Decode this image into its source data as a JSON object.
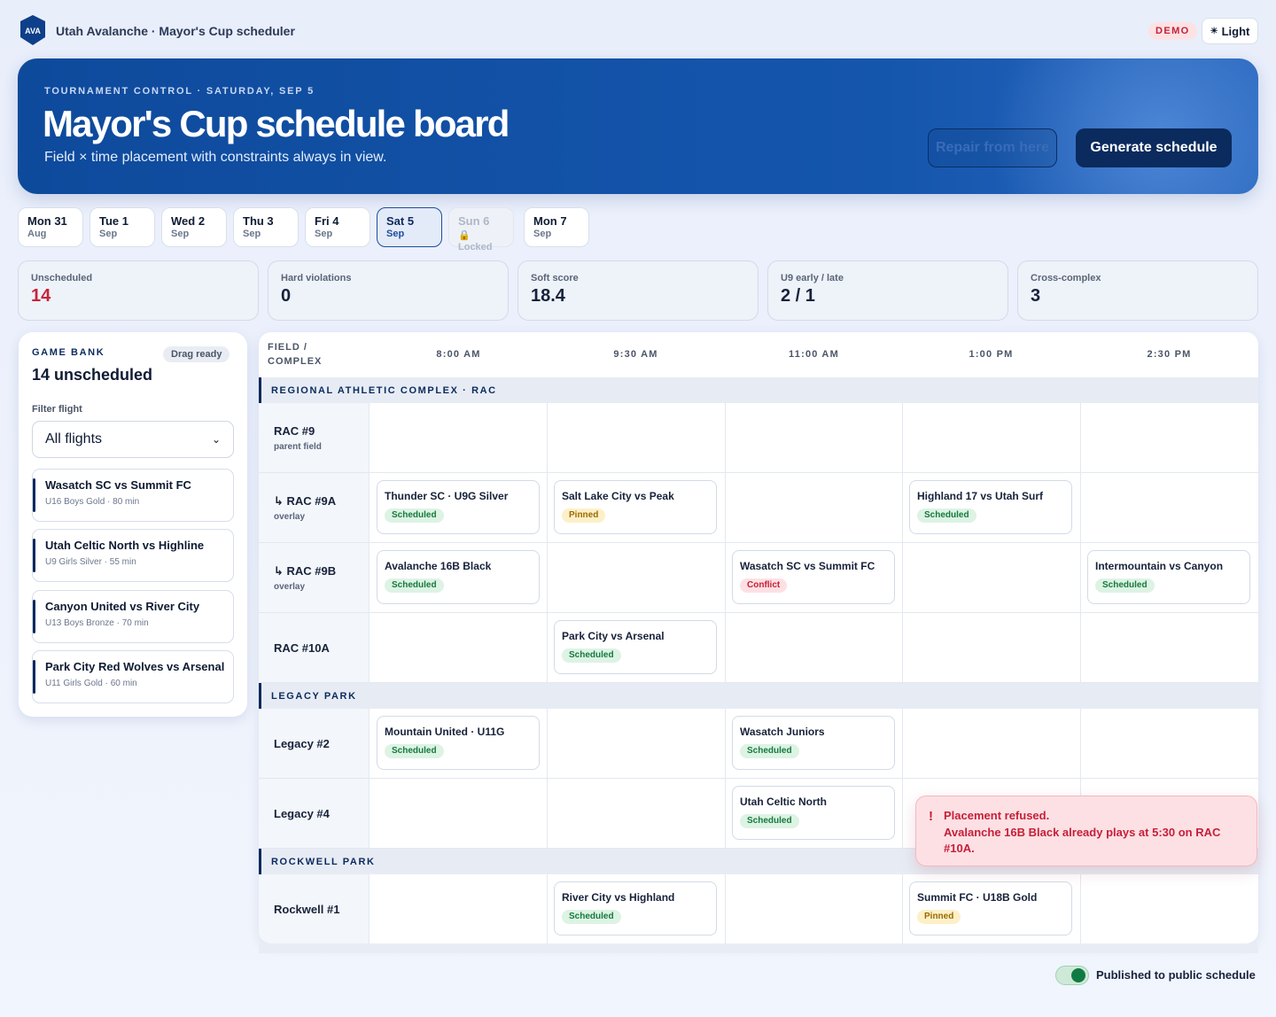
{
  "app": {
    "logo_text": "AVA",
    "title": "Utah Avalanche · Mayor's Cup scheduler",
    "demo_badge": "DEMO",
    "theme_label": "Light",
    "theme_icon": "sun-icon"
  },
  "hero": {
    "eyebrow": "TOURNAMENT CONTROL · SATURDAY, SEP 5",
    "title": "Mayor's Cup schedule board",
    "subtitle": "Field × time placement with constraints always in view.",
    "repair_label": "Repair from here",
    "generate_label": "Generate schedule"
  },
  "days": [
    {
      "day": "Mon 31",
      "month": "Aug",
      "state": "normal"
    },
    {
      "day": "Tue 1",
      "month": "Sep",
      "state": "normal"
    },
    {
      "day": "Wed 2",
      "month": "Sep",
      "state": "normal"
    },
    {
      "day": "Thu 3",
      "month": "Sep",
      "state": "normal"
    },
    {
      "day": "Fri 4",
      "month": "Sep",
      "state": "normal"
    },
    {
      "day": "Sat 5",
      "month": "Sep",
      "state": "active"
    },
    {
      "day": "Sun 6",
      "month": "Locked",
      "state": "locked"
    },
    {
      "day": "Mon 7",
      "month": "Sep",
      "state": "normal"
    }
  ],
  "stats": [
    {
      "label": "Unscheduled",
      "value": "14",
      "alert": true
    },
    {
      "label": "Hard violations",
      "value": "0",
      "alert": false
    },
    {
      "label": "Soft score",
      "value": "18.4",
      "alert": false
    },
    {
      "label": "U9 early / late",
      "value": "2 / 1",
      "alert": false
    },
    {
      "label": "Cross-complex",
      "value": "3",
      "alert": false
    }
  ],
  "bank": {
    "eyebrow": "GAME BANK",
    "chip": "Drag ready",
    "count": "14 unscheduled",
    "filter_label": "Filter flight",
    "filter_value": "All flights",
    "items": [
      {
        "title": "Wasatch SC vs Summit FC",
        "meta": "U16 Boys Gold · 80 min"
      },
      {
        "title": "Utah Celtic North vs Highline",
        "meta": "U9 Girls Silver · 55 min"
      },
      {
        "title": "Canyon United vs River City",
        "meta": "U13 Boys Bronze · 70 min"
      },
      {
        "title": "Park City Red Wolves vs Arsenal",
        "meta": "U11 Girls Gold · 60 min"
      }
    ]
  },
  "board": {
    "field_header": "FIELD / COMPLEX",
    "times": [
      "8:00 AM",
      "9:30 AM",
      "11:00 AM",
      "1:00 PM",
      "2:30 PM"
    ],
    "sections": [
      {
        "name": "REGIONAL ATHLETIC COMPLEX · RAC",
        "rows": [
          {
            "name": "RAC #9",
            "sub": "parent field",
            "games": []
          },
          {
            "name": "↳ RAC #9A",
            "sub": "overlay",
            "games": [
              {
                "slot": 0,
                "title": "Thunder SC · U9G Silver",
                "status": "Scheduled"
              },
              {
                "slot": 1,
                "title": "Salt Lake City vs Peak",
                "status": "Pinned"
              },
              {
                "slot": 3,
                "title": "Highland 17 vs Utah Surf",
                "status": "Scheduled"
              }
            ]
          },
          {
            "name": "↳ RAC #9B",
            "sub": "overlay",
            "games": [
              {
                "slot": 0,
                "title": "Avalanche 16B Black",
                "status": "Scheduled"
              },
              {
                "slot": 2,
                "title": "Wasatch SC vs Summit FC",
                "status": "Conflict"
              },
              {
                "slot": 4,
                "title": "Intermountain vs Canyon",
                "status": "Scheduled"
              }
            ]
          },
          {
            "name": "RAC #10A",
            "sub": "",
            "games": [
              {
                "slot": 1,
                "title": "Park City vs Arsenal",
                "status": "Scheduled"
              }
            ]
          }
        ]
      },
      {
        "name": "LEGACY PARK",
        "rows": [
          {
            "name": "Legacy #2",
            "sub": "",
            "games": [
              {
                "slot": 0,
                "title": "Mountain United · U11G",
                "status": "Scheduled"
              },
              {
                "slot": 2,
                "title": "Wasatch Juniors",
                "status": "Scheduled"
              }
            ]
          },
          {
            "name": "Legacy #4",
            "sub": "",
            "games": [
              {
                "slot": 2,
                "title": "Utah Celtic North",
                "status": "Scheduled"
              }
            ]
          }
        ]
      },
      {
        "name": "ROCKWELL PARK",
        "rows": [
          {
            "name": "Rockwell #1",
            "sub": "",
            "games": [
              {
                "slot": 1,
                "title": "River City vs Highland",
                "status": "Scheduled"
              },
              {
                "slot": 3,
                "title": "Summit FC · U18B Gold",
                "status": "Pinned"
              }
            ]
          }
        ]
      }
    ]
  },
  "toast": {
    "icon": "!",
    "title": "Placement refused.",
    "message": "Avalanche 16B Black already plays at 5:30 on RAC #10A."
  },
  "publish": {
    "label": "Published to public schedule",
    "on": true
  },
  "colors": {
    "brand_navy": "#0b2a5e",
    "hero_blue": "#1556ad",
    "scheduled": "#157a3d",
    "pinned": "#9a6a00",
    "conflict": "#c51f38"
  }
}
